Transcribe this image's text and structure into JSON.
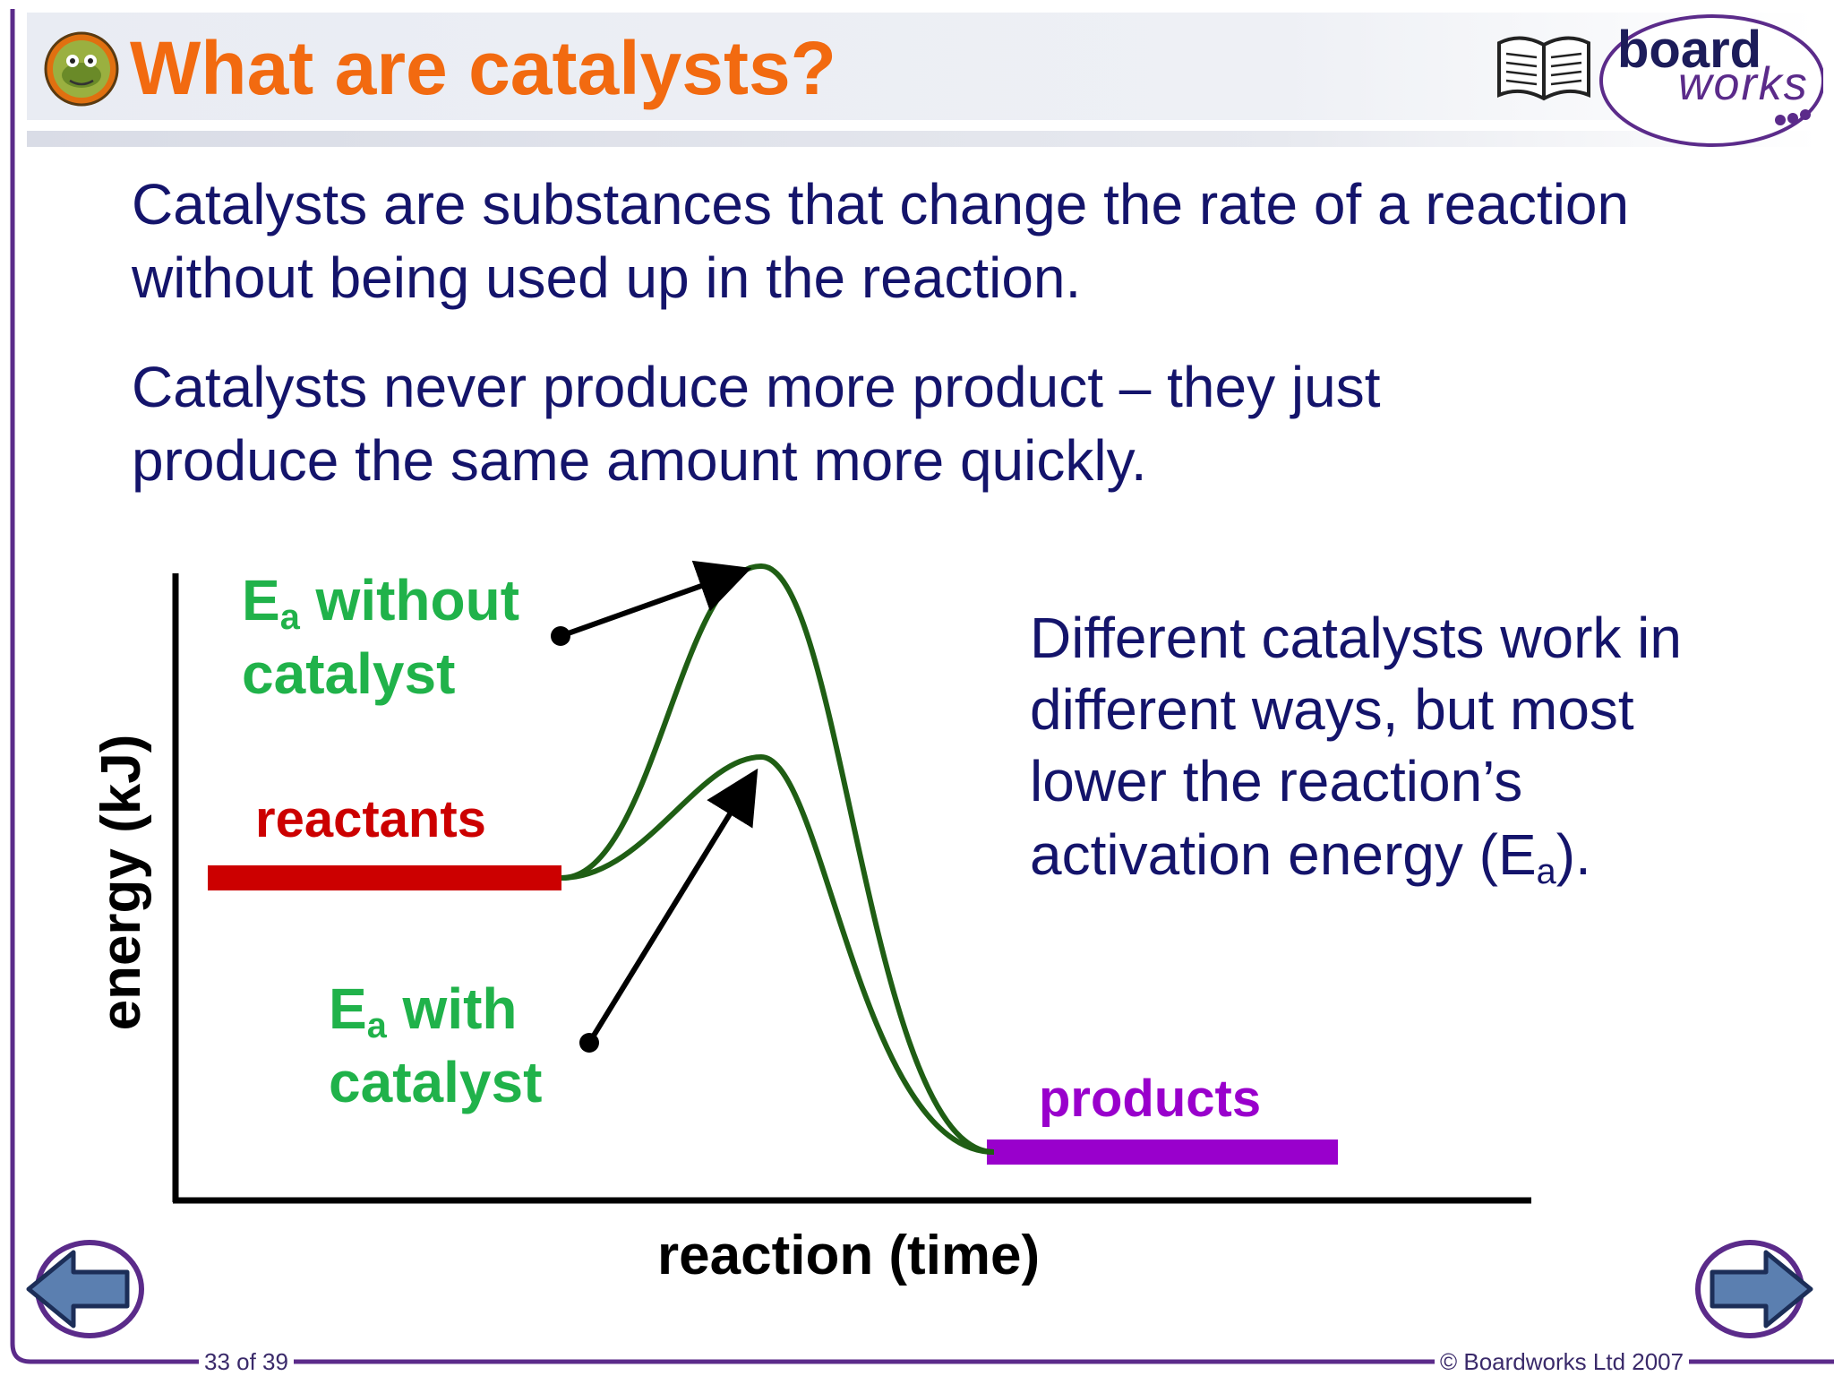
{
  "slide": {
    "title": "What are catalysts?",
    "paragraph1_line1": "Catalysts are substances that change the rate of a reaction",
    "paragraph1_line2": "without being used up in the reaction.",
    "paragraph2_line1": "Catalysts never produce more product – they just",
    "paragraph2_line2": "produce the same amount more quickly.",
    "side_line1": "Different catalysts work in",
    "side_line2": "different ways, but most",
    "side_line3": "lower the reaction’s",
    "side_line4_pre": "activation energy (E",
    "side_line4_sub": "a",
    "side_line4_post": ")."
  },
  "diagram": {
    "ylabel": "energy (kJ)",
    "xlabel": "reaction (time)",
    "reactants_label": "reactants",
    "products_label": "products",
    "ea_without_E": "E",
    "ea_without_sub": "a",
    "ea_without_rest": " without",
    "ea_without_line2": "catalyst",
    "ea_with_E": "E",
    "ea_with_sub": "a",
    "ea_with_rest": " with",
    "ea_with_line2": "catalyst",
    "colors": {
      "curve": "#1f5e14",
      "reactants": "#cc0000",
      "products": "#9900cc",
      "label_green": "#20b24a"
    }
  },
  "branding": {
    "logo_word1": "board",
    "logo_word2": "works",
    "book_icon": "open-book-icon",
    "badge_icon": "frog-badge-icon"
  },
  "footer": {
    "page": "33 of 39",
    "copyright": "© Boardworks Ltd 2007"
  },
  "nav": {
    "prev_icon": "arrow-left-icon",
    "next_icon": "arrow-right-icon"
  }
}
